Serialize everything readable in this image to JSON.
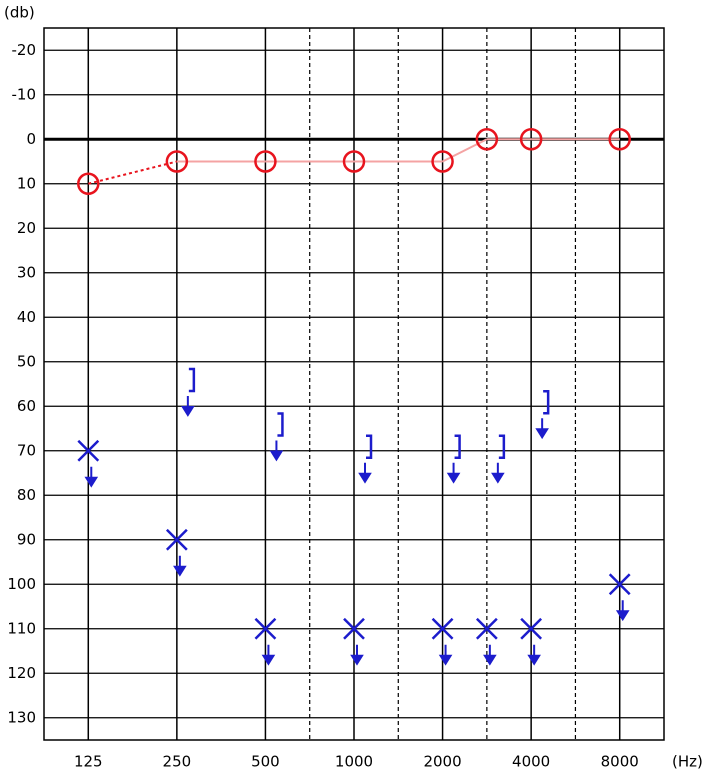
{
  "chart_data": {
    "type": "audiogram",
    "y_label": "(db)",
    "x_label": "(Hz)",
    "categories": [
      "125",
      null,
      "250",
      null,
      "500",
      null,
      "1000",
      null,
      "2000",
      null,
      "4000",
      null,
      "8000"
    ],
    "dashed_grid_at": [
      5,
      7,
      9,
      11
    ],
    "ylim": [
      -25,
      135
    ],
    "yticks": [
      -20,
      -10,
      0,
      10,
      20,
      30,
      40,
      50,
      60,
      70,
      80,
      90,
      100,
      110,
      120,
      130
    ],
    "grid": true,
    "series": [
      {
        "marker": "o",
        "color": "#e8141e",
        "line_color": "#f4a3a3",
        "connected": true,
        "no_response": false,
        "values": [
          10,
          null,
          5,
          null,
          5,
          null,
          5,
          null,
          5,
          0,
          0,
          null,
          0
        ]
      },
      {
        "marker": "x",
        "color": "#1c1ccc",
        "connected": false,
        "no_response": true,
        "values": [
          70,
          null,
          90,
          null,
          110,
          null,
          110,
          null,
          110,
          110,
          110,
          null,
          100
        ]
      },
      {
        "marker": "]",
        "color": "#1c1ccc",
        "connected": false,
        "no_response": true,
        "values": [
          null,
          null,
          55,
          null,
          65,
          null,
          70,
          null,
          70,
          70,
          60,
          null,
          null
        ]
      }
    ]
  }
}
